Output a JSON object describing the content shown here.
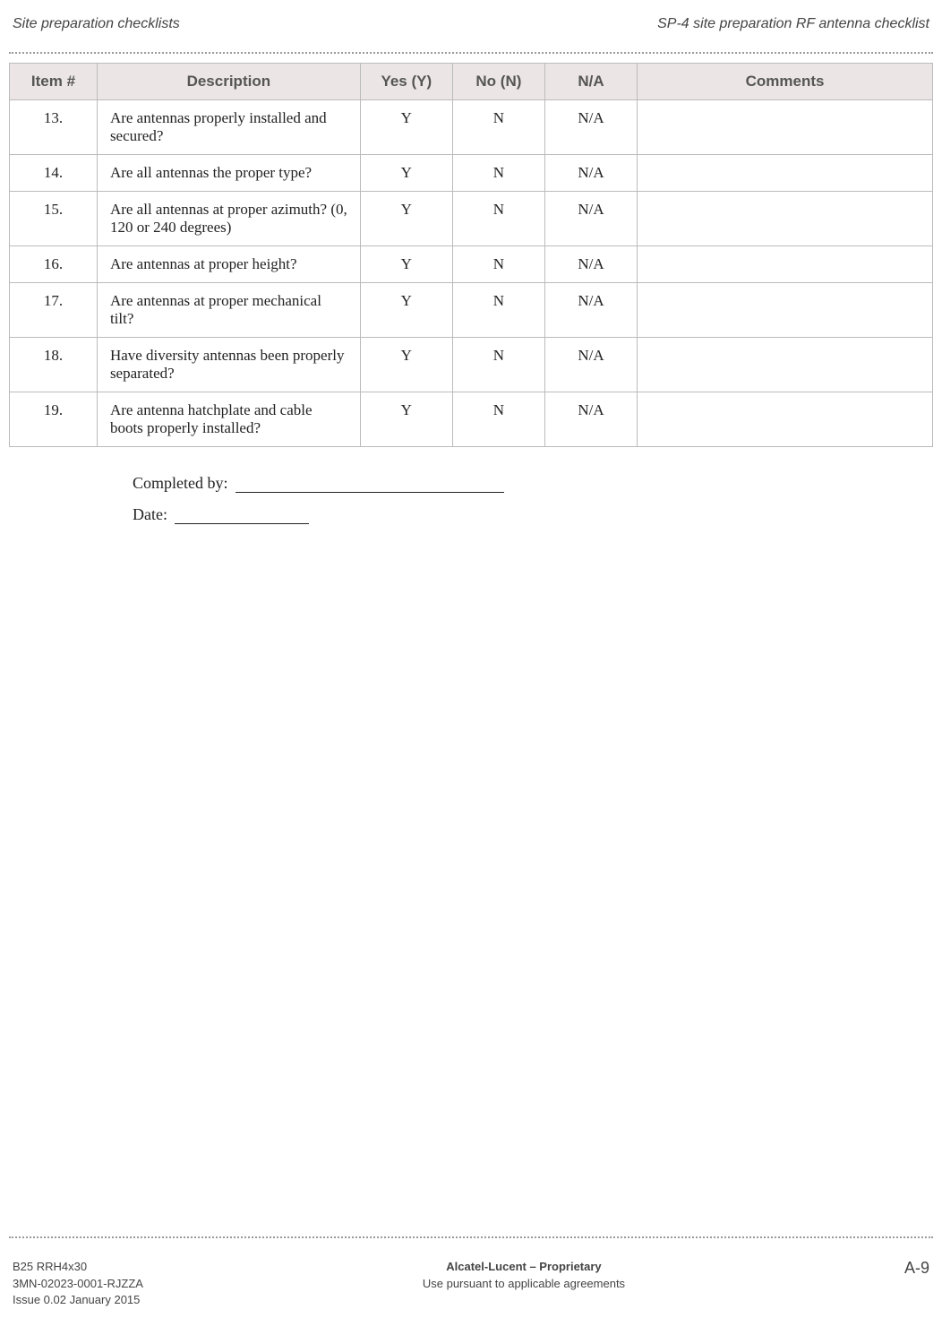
{
  "header": {
    "left": "Site preparation checklists",
    "right": "SP-4 site preparation RF antenna checklist"
  },
  "table": {
    "columns": {
      "item": "Item #",
      "description": "Description",
      "yes": "Yes (Y)",
      "no": "No (N)",
      "na": "N/A",
      "comments": "Comments"
    },
    "rows": [
      {
        "item": "13.",
        "description": "Are antennas properly installed and secured?",
        "yes": "Y",
        "no": "N",
        "na": "N/A",
        "comments": ""
      },
      {
        "item": "14.",
        "description": "Are all antennas the proper type?",
        "yes": "Y",
        "no": "N",
        "na": "N/A",
        "comments": ""
      },
      {
        "item": "15.",
        "description": "Are all antennas at proper azimuth? (0, 120 or 240 degrees)",
        "yes": "Y",
        "no": "N",
        "na": "N/A",
        "comments": ""
      },
      {
        "item": "16.",
        "description": "Are antennas at proper height?",
        "yes": "Y",
        "no": "N",
        "na": "N/A",
        "comments": ""
      },
      {
        "item": "17.",
        "description": "Are antennas at proper mechanical tilt?",
        "yes": "Y",
        "no": "N",
        "na": "N/A",
        "comments": ""
      },
      {
        "item": "18.",
        "description": "Have diversity antennas been properly separated?",
        "yes": "Y",
        "no": "N",
        "na": "N/A",
        "comments": ""
      },
      {
        "item": "19.",
        "description": "Are antenna hatchplate and cable boots properly installed?",
        "yes": "Y",
        "no": "N",
        "na": "N/A",
        "comments": ""
      }
    ]
  },
  "signature": {
    "completed_by_label": "Completed by:",
    "date_label": "Date:"
  },
  "footer": {
    "left_line1": "B25 RRH4x30",
    "left_line2": "3MN-02023-0001-RJZZA",
    "left_line3": "Issue 0.02   January 2015",
    "center_line1": "Alcatel-Lucent – Proprietary",
    "center_line2": "Use pursuant to applicable agreements",
    "page": "A-9"
  }
}
